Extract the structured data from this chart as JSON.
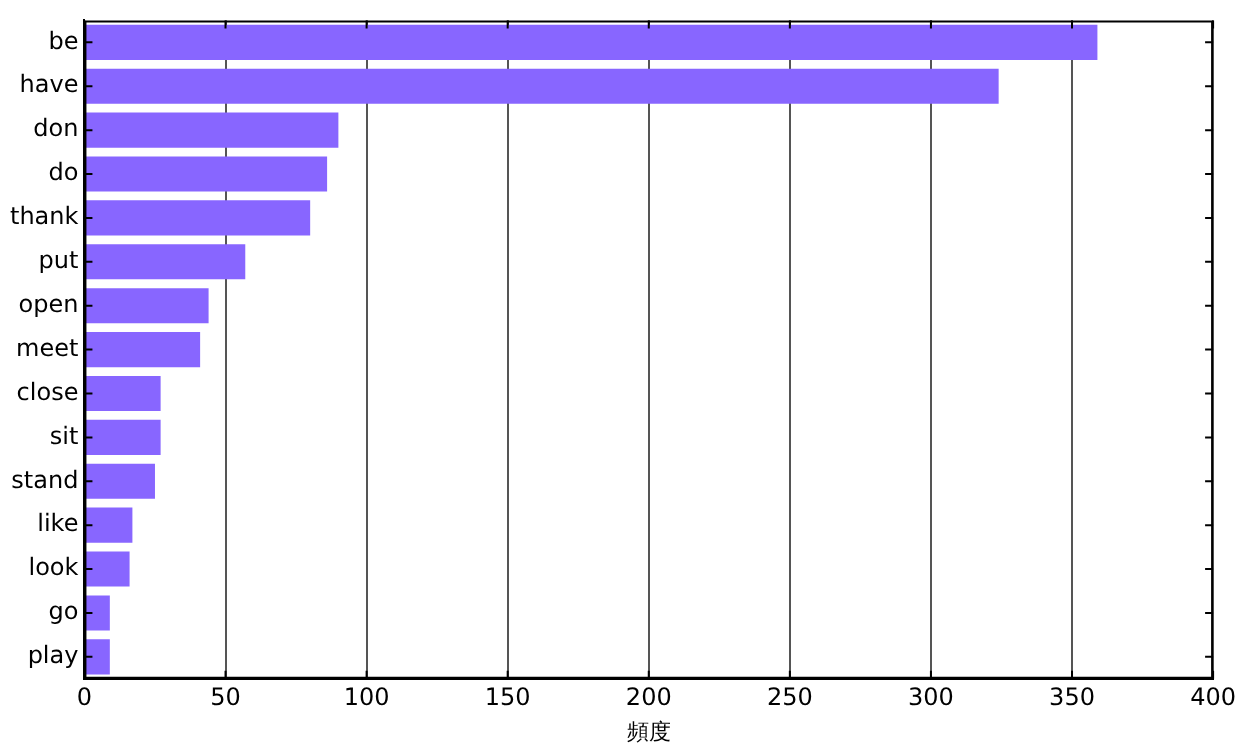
{
  "chart_data": {
    "type": "bar",
    "orientation": "horizontal",
    "xlabel": "頻度",
    "categories": [
      "be",
      "have",
      "don",
      "do",
      "thank",
      "put",
      "open",
      "meet",
      "close",
      "sit",
      "stand",
      "like",
      "look",
      "go",
      "play"
    ],
    "values": [
      359,
      324,
      90,
      86,
      80,
      57,
      44,
      41,
      27,
      27,
      25,
      17,
      16,
      9,
      9
    ],
    "color": "#8866ff",
    "xlim": [
      0,
      400
    ],
    "xticks": [
      0,
      50,
      100,
      150,
      200,
      250,
      300,
      350,
      400
    ],
    "grid": "x",
    "legend": false
  }
}
